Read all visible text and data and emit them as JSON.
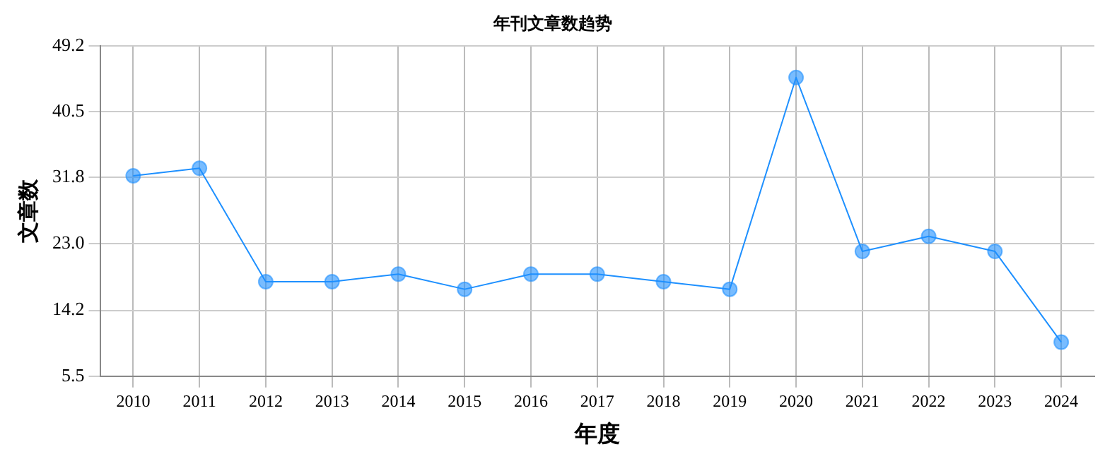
{
  "chart_data": {
    "type": "line",
    "title": "年刊文章数趋势",
    "xlabel": "年度",
    "ylabel": "文章数",
    "categories": [
      "2010",
      "2011",
      "2012",
      "2013",
      "2014",
      "2015",
      "2016",
      "2017",
      "2018",
      "2019",
      "2020",
      "2021",
      "2022",
      "2023",
      "2024"
    ],
    "series": [
      {
        "color": "#1e90ff",
        "values": [
          32,
          33,
          18,
          18,
          19,
          17,
          19,
          19,
          18,
          17,
          45,
          22,
          24,
          22,
          10
        ]
      }
    ],
    "ylim": [
      5.5,
      49.2
    ],
    "yticks": [
      5.5,
      14.2,
      {
        "value": 23,
        "label": "23.0"
      },
      31.8,
      40.5,
      49.2
    ],
    "grid": true,
    "marker": "circle",
    "line_style": "solid",
    "legend": false
  }
}
